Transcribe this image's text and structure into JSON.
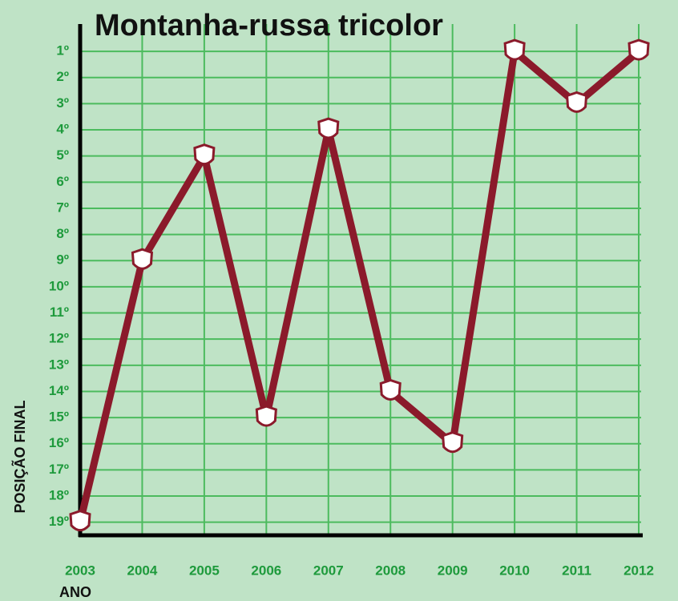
{
  "chart_data": {
    "type": "line",
    "title": "Montanha-russa tricolor",
    "x_label": "ANO",
    "y_label": "POSIÇÃO FINAL",
    "x": [
      2003,
      2004,
      2005,
      2006,
      2007,
      2008,
      2009,
      2010,
      2011,
      2012
    ],
    "series": [
      {
        "color": "#8b1a2b",
        "values": [
          19,
          9,
          5,
          15,
          4,
          14,
          16,
          1,
          3,
          1
        ]
      }
    ],
    "xlim": [
      2003,
      2012
    ],
    "xticks": [
      2003,
      2004,
      2005,
      2006,
      2007,
      2008,
      2009,
      2010,
      2011,
      2012
    ],
    "ylim": [
      19.5,
      0.2
    ],
    "yticks": [
      {
        "value": 1,
        "label": "1º"
      },
      {
        "value": 2,
        "label": "2º"
      },
      {
        "value": 3,
        "label": "3º"
      },
      {
        "value": 4,
        "label": "4º"
      },
      {
        "value": 5,
        "label": "5º"
      },
      {
        "value": 6,
        "label": "6º"
      },
      {
        "value": 7,
        "label": "7º"
      },
      {
        "value": 8,
        "label": "8º"
      },
      {
        "value": 9,
        "label": "9º"
      },
      {
        "value": 10,
        "label": "10º"
      },
      {
        "value": 11,
        "label": "11º"
      },
      {
        "value": 12,
        "label": "12º"
      },
      {
        "value": 13,
        "label": "13º"
      },
      {
        "value": 14,
        "label": "14º"
      },
      {
        "value": 15,
        "label": "15º"
      },
      {
        "value": 16,
        "label": "16º"
      },
      {
        "value": 17,
        "label": "17º"
      },
      {
        "value": 18,
        "label": "18º"
      },
      {
        "value": 19,
        "label": "19º"
      }
    ],
    "grid": true
  }
}
